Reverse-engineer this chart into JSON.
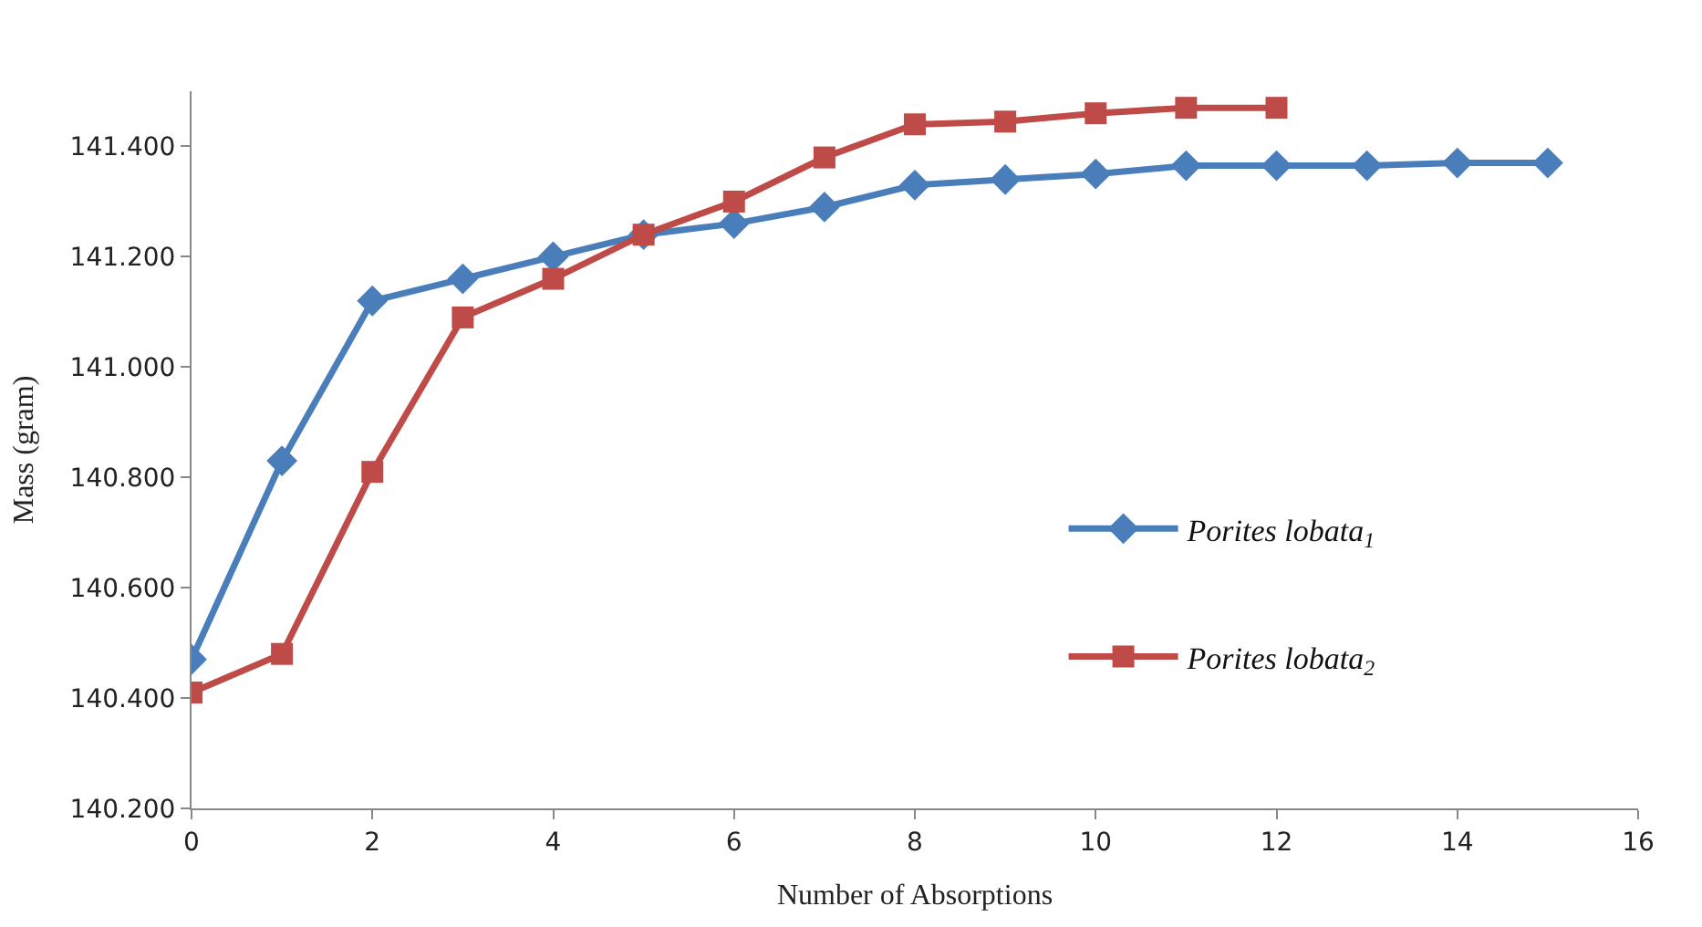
{
  "chart_data": {
    "type": "line",
    "xlabel": "Number of Absorptions",
    "ylabel": "Mass (gram)",
    "xlim": [
      0,
      16
    ],
    "xticks": [
      0,
      2,
      4,
      6,
      8,
      10,
      12,
      14,
      16
    ],
    "ylim": [
      140.2,
      141.5
    ],
    "yticks": [
      {
        "value": 140.2,
        "label": "140.200"
      },
      {
        "value": 140.4,
        "label": "140.400"
      },
      {
        "value": 140.6,
        "label": "140.600"
      },
      {
        "value": 140.8,
        "label": "140.800"
      },
      {
        "value": 141.0,
        "label": "141.000"
      },
      {
        "value": 141.2,
        "label": "141.200"
      },
      {
        "value": 141.4,
        "label": "141.400"
      }
    ],
    "legend": "right",
    "line_style": "solid",
    "series": [
      {
        "name": "Porites lobata$_{1}$",
        "color": "#4a7ebb",
        "marker": "diamond",
        "x": [
          0,
          1,
          2,
          3,
          4,
          5,
          6,
          7,
          8,
          9,
          10,
          11,
          12,
          13,
          14,
          15
        ],
        "values": [
          140.47,
          140.83,
          141.12,
          141.16,
          141.2,
          141.24,
          141.26,
          141.29,
          141.33,
          141.34,
          141.35,
          141.365,
          141.365,
          141.365,
          141.37,
          141.37
        ]
      },
      {
        "name": "Porites lobata$_{2}$",
        "color": "#be4b48",
        "marker": "square",
        "x": [
          0,
          1,
          2,
          3,
          4,
          5,
          6,
          7,
          8,
          9,
          10,
          11,
          12
        ],
        "values": [
          140.41,
          140.48,
          140.81,
          141.09,
          141.16,
          141.24,
          141.3,
          141.38,
          141.44,
          141.445,
          141.46,
          141.47,
          141.47
        ]
      }
    ]
  }
}
